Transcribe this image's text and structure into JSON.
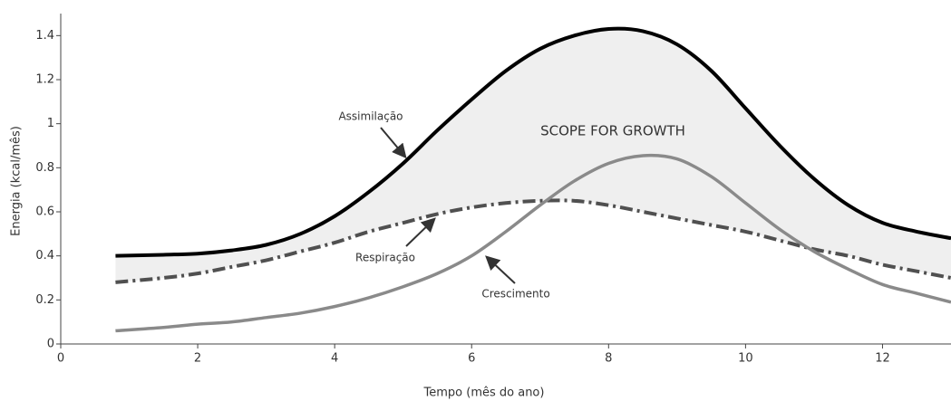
{
  "chart_data": {
    "type": "line",
    "xlabel": "Tempo (mês do ano)",
    "ylabel": "Energia (kcal/mês)",
    "x": [
      0.8,
      1.5,
      2,
      2.5,
      3,
      3.5,
      4,
      4.5,
      5,
      5.5,
      6,
      6.5,
      7,
      7.5,
      8,
      8.5,
      9,
      9.5,
      10,
      10.5,
      11,
      11.5,
      12,
      12.5,
      13
    ],
    "series": [
      {
        "name": "Assimilação",
        "color": "#000000",
        "dash": "solid",
        "values": [
          0.4,
          0.405,
          0.41,
          0.425,
          0.45,
          0.5,
          0.58,
          0.69,
          0.82,
          0.97,
          1.11,
          1.24,
          1.34,
          1.4,
          1.43,
          1.42,
          1.36,
          1.24,
          1.07,
          0.9,
          0.75,
          0.63,
          0.55,
          0.51,
          0.48
        ]
      },
      {
        "name": "Respiração",
        "color": "#505050",
        "dash": "dashdot",
        "values": [
          0.28,
          0.3,
          0.32,
          0.35,
          0.38,
          0.42,
          0.46,
          0.51,
          0.55,
          0.59,
          0.62,
          0.64,
          0.65,
          0.65,
          0.63,
          0.6,
          0.57,
          0.54,
          0.51,
          0.47,
          0.43,
          0.4,
          0.36,
          0.33,
          0.3
        ]
      },
      {
        "name": "Crescimento",
        "color": "#8a8a8a",
        "dash": "solid",
        "values": [
          0.06,
          0.075,
          0.09,
          0.1,
          0.12,
          0.14,
          0.17,
          0.21,
          0.26,
          0.32,
          0.4,
          0.51,
          0.63,
          0.74,
          0.82,
          0.855,
          0.84,
          0.76,
          0.64,
          0.52,
          0.42,
          0.34,
          0.27,
          0.23,
          0.19
        ]
      }
    ],
    "fill_between": {
      "series": [
        0,
        1
      ],
      "color": "#efefef",
      "label": "SCOPE FOR GROWTH"
    },
    "xlim": [
      0,
      13
    ],
    "xticks": [
      0,
      2,
      4,
      6,
      8,
      10,
      12
    ],
    "ylim": [
      0,
      1.5
    ],
    "yticks": [
      0,
      0.2,
      0.4,
      0.6,
      0.8,
      1,
      1.2,
      1.4
    ],
    "grid": false
  }
}
